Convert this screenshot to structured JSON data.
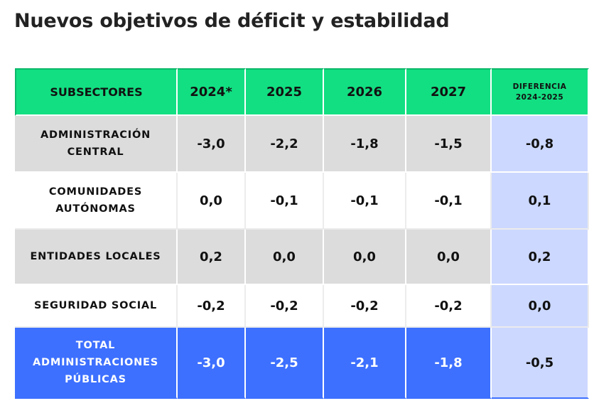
{
  "title": "Nuevos objetivos de déficit y estabilidad",
  "table": {
    "headers": [
      "SUBSECTORES",
      "2024*",
      "2025",
      "2026",
      "2027"
    ],
    "diff_header": [
      "DIFERENCIA",
      "2024-2025"
    ],
    "rows": [
      {
        "label_lines": [
          "ADMINISTRACIÓN",
          "CENTRAL"
        ],
        "values": [
          "-3,0",
          "-2,2",
          "-1,8",
          "-1,5"
        ],
        "diff": "-0,8"
      },
      {
        "label_lines": [
          "COMUNIDADES",
          "AUTÓNOMAS"
        ],
        "values": [
          "0,0",
          "-0,1",
          "-0,1",
          "-0,1"
        ],
        "diff": "0,1"
      },
      {
        "label_lines": [
          "ENTIDADES LOCALES"
        ],
        "values": [
          "0,2",
          "0,0",
          "0,0",
          "0,0"
        ],
        "diff": "0,2"
      },
      {
        "label_lines": [
          "SEGURIDAD SOCIAL"
        ],
        "values": [
          "-0,2",
          "-0,2",
          "-0,2",
          "-0,2"
        ],
        "diff": "0,0"
      },
      {
        "label_lines": [
          "TOTAL",
          "ADMINISTRACIONES",
          "PÚBLICAS"
        ],
        "values": [
          "-3,0",
          "-2,5",
          "-2,1",
          "-1,8"
        ],
        "diff": "-0,5"
      }
    ]
  },
  "colors": {
    "header_green": "#12df82",
    "row_gray": "#dcdcdc",
    "total_blue": "#3d70ff",
    "diff_column": "#ccd8ff"
  }
}
